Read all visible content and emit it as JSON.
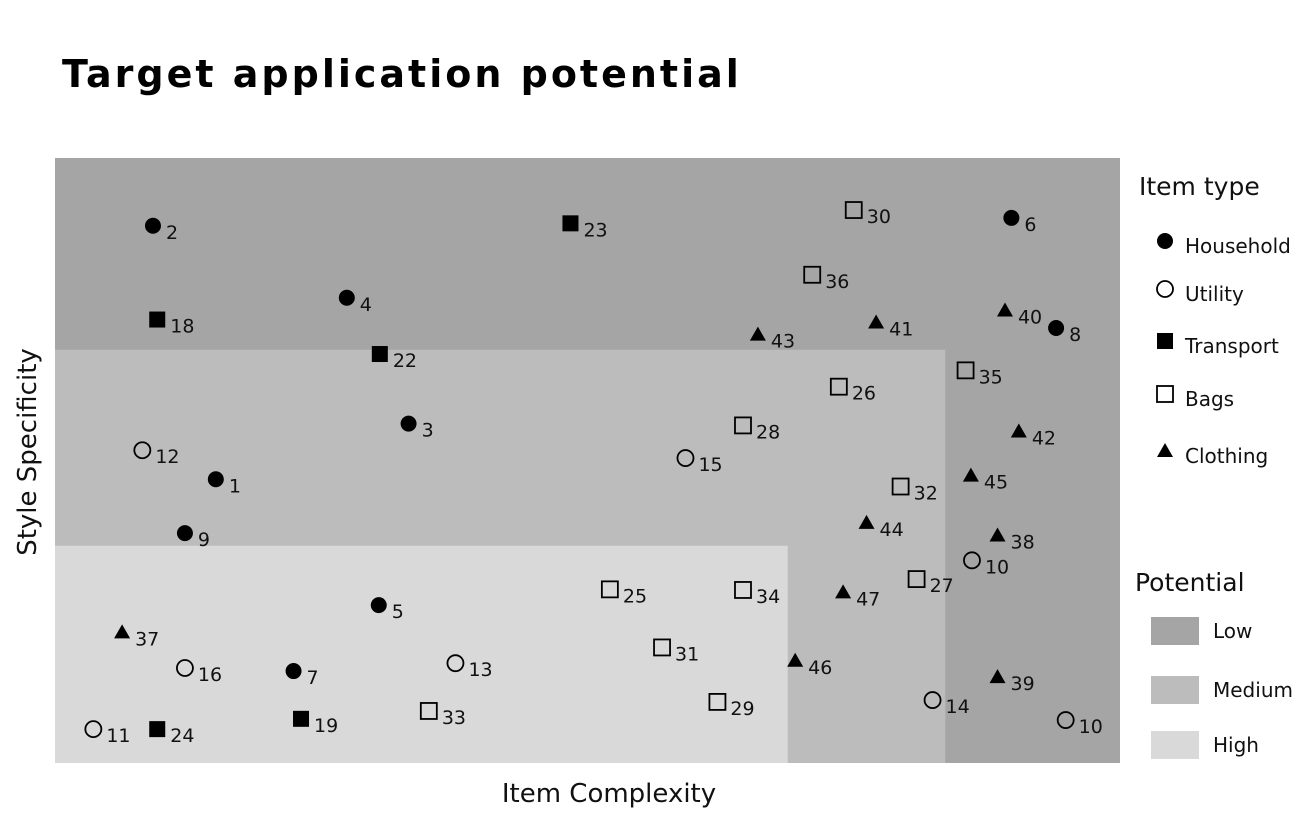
{
  "colors": {
    "low": "#a5a5a5",
    "medium": "#bcbcbc",
    "high": "#d9d9d9",
    "marker": "#000000"
  },
  "chart_data": {
    "type": "scatter",
    "title": "Target application potential",
    "xlabel": "Item Complexity",
    "ylabel": "Style Specificity",
    "xlim": [
      0,
      100
    ],
    "ylim": [
      0,
      100
    ],
    "grid": false,
    "x_ticks_shown": false,
    "y_ticks_shown": false,
    "regions": [
      {
        "name": "Low",
        "color": "#a5a5a5",
        "x": [
          0,
          100
        ],
        "y": [
          0,
          100
        ]
      },
      {
        "name": "Medium",
        "color": "#bcbcbc",
        "x": [
          0,
          83.6
        ],
        "y": [
          0,
          68.3
        ]
      },
      {
        "name": "High",
        "color": "#d9d9d9",
        "x": [
          0,
          68.8
        ],
        "y": [
          0,
          35.9
        ]
      }
    ],
    "legend": {
      "placement": "right",
      "item_type_title": "Item type",
      "potential_title": "Potential",
      "item_types": [
        {
          "name": "Household",
          "marker": "filled-circle"
        },
        {
          "name": "Utility",
          "marker": "open-circle"
        },
        {
          "name": "Transport",
          "marker": "filled-square"
        },
        {
          "name": "Bags",
          "marker": "open-square"
        },
        {
          "name": "Clothing",
          "marker": "filled-triangle"
        }
      ],
      "potentials": [
        "Low",
        "Medium",
        "High"
      ]
    },
    "series": [
      {
        "name": "Household",
        "marker": "filled-circle",
        "points": [
          {
            "label": "1",
            "x": 15.1,
            "y": 46.9
          },
          {
            "label": "2",
            "x": 9.2,
            "y": 88.8
          },
          {
            "label": "3",
            "x": 33.2,
            "y": 56.1
          },
          {
            "label": "4",
            "x": 27.4,
            "y": 76.9
          },
          {
            "label": "5",
            "x": 30.4,
            "y": 26.1
          },
          {
            "label": "6",
            "x": 89.8,
            "y": 90.1
          },
          {
            "label": "7",
            "x": 22.4,
            "y": 15.2
          },
          {
            "label": "8",
            "x": 94.0,
            "y": 71.9
          },
          {
            "label": "9",
            "x": 12.2,
            "y": 38.0
          }
        ]
      },
      {
        "name": "Utility",
        "marker": "open-circle",
        "points": [
          {
            "label": "10",
            "x": 86.1,
            "y": 33.5
          },
          {
            "label": "10",
            "x": 94.9,
            "y": 7.1
          },
          {
            "label": "11",
            "x": 3.6,
            "y": 5.6
          },
          {
            "label": "12",
            "x": 8.2,
            "y": 51.7
          },
          {
            "label": "13",
            "x": 37.6,
            "y": 16.5
          },
          {
            "label": "14",
            "x": 82.4,
            "y": 10.4
          },
          {
            "label": "15",
            "x": 59.2,
            "y": 50.4
          },
          {
            "label": "16",
            "x": 12.2,
            "y": 15.7
          }
        ]
      },
      {
        "name": "Transport",
        "marker": "filled-square",
        "points": [
          {
            "label": "18",
            "x": 9.6,
            "y": 73.3
          },
          {
            "label": "19",
            "x": 23.1,
            "y": 7.3
          },
          {
            "label": "22",
            "x": 30.5,
            "y": 67.6
          },
          {
            "label": "23",
            "x": 48.4,
            "y": 89.2
          },
          {
            "label": "24",
            "x": 9.6,
            "y": 5.6
          }
        ]
      },
      {
        "name": "Bags",
        "marker": "open-square",
        "points": [
          {
            "label": "25",
            "x": 52.1,
            "y": 28.7
          },
          {
            "label": "26",
            "x": 73.6,
            "y": 62.2
          },
          {
            "label": "27",
            "x": 80.9,
            "y": 30.4
          },
          {
            "label": "28",
            "x": 64.6,
            "y": 55.8
          },
          {
            "label": "29",
            "x": 62.2,
            "y": 10.1
          },
          {
            "label": "30",
            "x": 75.0,
            "y": 91.4
          },
          {
            "label": "31",
            "x": 57.0,
            "y": 19.1
          },
          {
            "label": "32",
            "x": 79.4,
            "y": 45.7
          },
          {
            "label": "33",
            "x": 35.1,
            "y": 8.6
          },
          {
            "label": "34",
            "x": 64.6,
            "y": 28.6
          },
          {
            "label": "35",
            "x": 85.5,
            "y": 64.9
          },
          {
            "label": "36",
            "x": 71.1,
            "y": 80.7
          }
        ]
      },
      {
        "name": "Clothing",
        "marker": "filled-triangle",
        "points": [
          {
            "label": "37",
            "x": 6.3,
            "y": 21.6
          },
          {
            "label": "38",
            "x": 88.5,
            "y": 37.6
          },
          {
            "label": "39",
            "x": 88.5,
            "y": 14.2
          },
          {
            "label": "40",
            "x": 89.2,
            "y": 74.8
          },
          {
            "label": "41",
            "x": 77.1,
            "y": 72.8
          },
          {
            "label": "42",
            "x": 90.5,
            "y": 54.8
          },
          {
            "label": "43",
            "x": 66.0,
            "y": 70.8
          },
          {
            "label": "44",
            "x": 76.2,
            "y": 39.7
          },
          {
            "label": "45",
            "x": 86.0,
            "y": 47.5
          },
          {
            "label": "46",
            "x": 69.5,
            "y": 16.9
          },
          {
            "label": "47",
            "x": 74.0,
            "y": 28.2
          }
        ]
      }
    ]
  }
}
